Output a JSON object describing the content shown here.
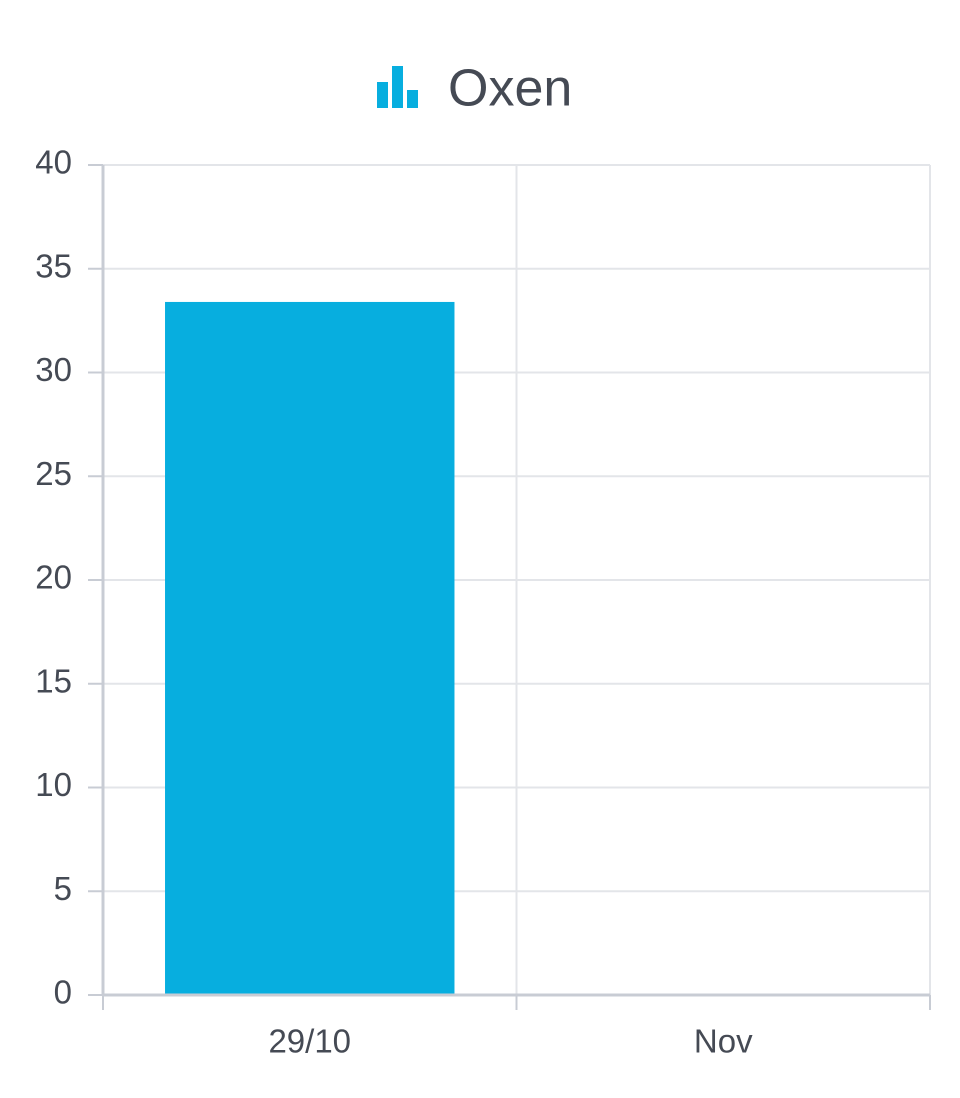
{
  "chart_data": {
    "type": "bar",
    "categories": [
      "29/10",
      "Nov"
    ],
    "series": [
      {
        "name": "Oxen",
        "color": "#07aedf",
        "values": [
          33.4,
          null
        ]
      }
    ],
    "ylim": [
      0,
      40
    ],
    "yticks": [
      0,
      5,
      10,
      15,
      20,
      25,
      30,
      35,
      40
    ],
    "grid": true,
    "legend": "top"
  }
}
